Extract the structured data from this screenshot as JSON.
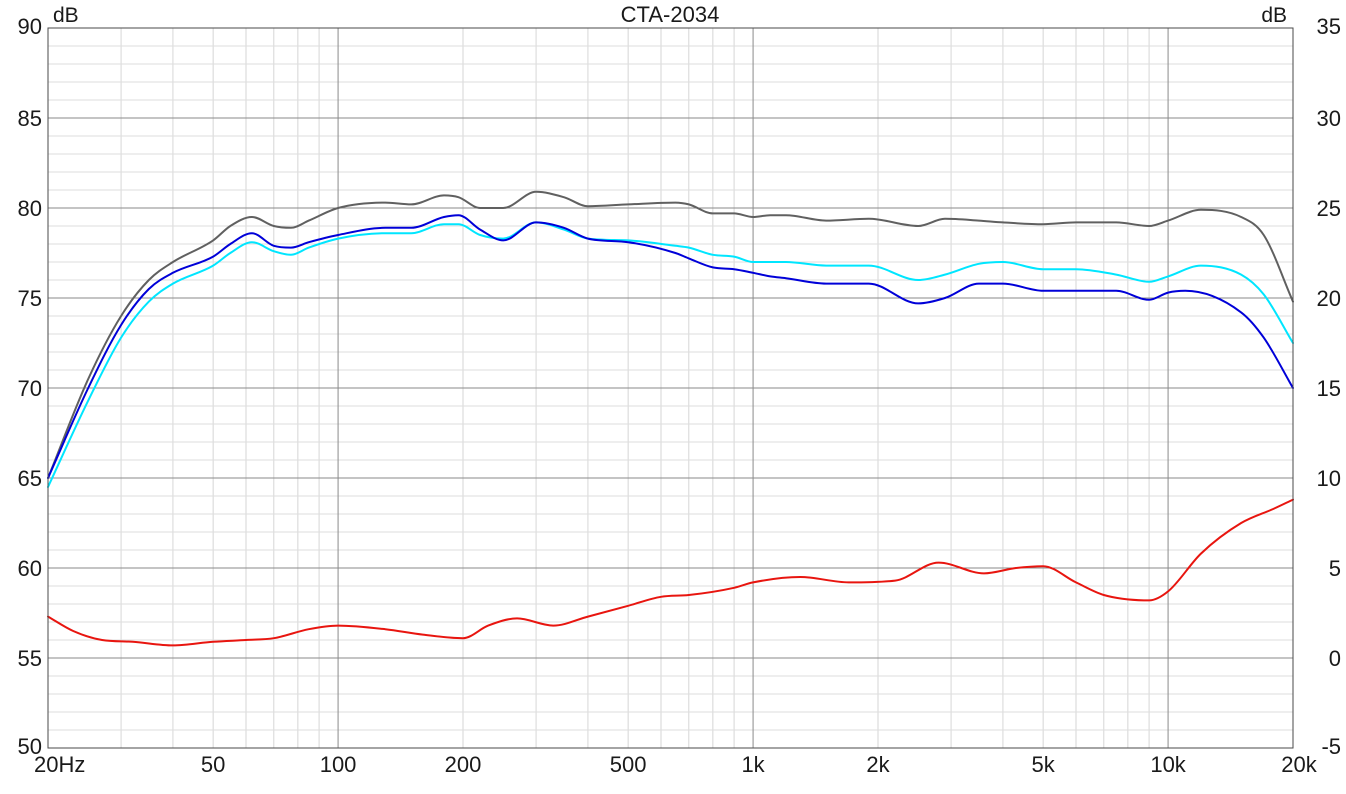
{
  "chart_data": {
    "type": "line",
    "title": "CTA-2034",
    "y_left_unit": "dB",
    "y_right_unit": "dB",
    "x_scale": "log",
    "xlim": [
      20,
      20000
    ],
    "ylim_left": [
      50,
      90
    ],
    "ylim_right": [
      -5,
      35
    ],
    "grid": true,
    "x_ticks": [
      {
        "value": 20,
        "label": "20Hz"
      },
      {
        "value": 50,
        "label": "50"
      },
      {
        "value": 100,
        "label": "100"
      },
      {
        "value": 200,
        "label": "200"
      },
      {
        "value": 500,
        "label": "500"
      },
      {
        "value": 1000,
        "label": "1k"
      },
      {
        "value": 2000,
        "label": "2k"
      },
      {
        "value": 5000,
        "label": "5k"
      },
      {
        "value": 10000,
        "label": "10k"
      },
      {
        "value": 20000,
        "label": "20k"
      }
    ],
    "y_left_ticks": [
      50,
      55,
      60,
      65,
      70,
      75,
      80,
      85,
      90
    ],
    "y_right_ticks": [
      -5,
      0,
      5,
      10,
      15,
      20,
      25,
      30,
      35
    ],
    "series": [
      {
        "color": "#606060",
        "axis": "left",
        "points": [
          [
            20,
            65.0
          ],
          [
            25,
            70.5
          ],
          [
            30,
            74.0
          ],
          [
            35,
            76.0
          ],
          [
            40,
            77.0
          ],
          [
            50,
            78.2
          ],
          [
            55,
            79.0
          ],
          [
            62,
            79.5
          ],
          [
            70,
            79.0
          ],
          [
            77,
            78.9
          ],
          [
            85,
            79.3
          ],
          [
            100,
            80.0
          ],
          [
            130,
            80.3
          ],
          [
            150,
            80.2
          ],
          [
            180,
            80.7
          ],
          [
            195,
            80.6
          ],
          [
            220,
            80.0
          ],
          [
            250,
            80.0
          ],
          [
            300,
            80.9
          ],
          [
            350,
            80.6
          ],
          [
            400,
            80.1
          ],
          [
            500,
            80.2
          ],
          [
            650,
            80.3
          ],
          [
            700,
            80.2
          ],
          [
            800,
            79.7
          ],
          [
            900,
            79.7
          ],
          [
            1000,
            79.5
          ],
          [
            1100,
            79.6
          ],
          [
            1200,
            79.6
          ],
          [
            1500,
            79.3
          ],
          [
            1900,
            79.4
          ],
          [
            2500,
            79.0
          ],
          [
            2900,
            79.4
          ],
          [
            3500,
            79.3
          ],
          [
            4000,
            79.2
          ],
          [
            5000,
            79.1
          ],
          [
            6000,
            79.2
          ],
          [
            7500,
            79.2
          ],
          [
            9000,
            79.0
          ],
          [
            10000,
            79.3
          ],
          [
            12000,
            79.9
          ],
          [
            15000,
            79.5
          ],
          [
            17000,
            78.5
          ],
          [
            20000,
            74.8
          ]
        ]
      },
      {
        "color": "#00e6ff",
        "axis": "left",
        "points": [
          [
            20,
            64.5
          ],
          [
            25,
            69.3
          ],
          [
            30,
            72.8
          ],
          [
            35,
            74.8
          ],
          [
            40,
            75.8
          ],
          [
            50,
            76.8
          ],
          [
            55,
            77.5
          ],
          [
            62,
            78.1
          ],
          [
            70,
            77.6
          ],
          [
            77,
            77.4
          ],
          [
            85,
            77.8
          ],
          [
            100,
            78.3
          ],
          [
            130,
            78.6
          ],
          [
            150,
            78.6
          ],
          [
            180,
            79.1
          ],
          [
            195,
            79.1
          ],
          [
            220,
            78.5
          ],
          [
            250,
            78.3
          ],
          [
            300,
            79.2
          ],
          [
            350,
            78.8
          ],
          [
            400,
            78.3
          ],
          [
            500,
            78.2
          ],
          [
            650,
            77.9
          ],
          [
            700,
            77.8
          ],
          [
            800,
            77.4
          ],
          [
            900,
            77.3
          ],
          [
            1000,
            77.0
          ],
          [
            1100,
            77.0
          ],
          [
            1200,
            77.0
          ],
          [
            1500,
            76.8
          ],
          [
            1900,
            76.8
          ],
          [
            2500,
            76.0
          ],
          [
            2900,
            76.3
          ],
          [
            3500,
            76.9
          ],
          [
            4000,
            77.0
          ],
          [
            5000,
            76.6
          ],
          [
            6000,
            76.6
          ],
          [
            7500,
            76.3
          ],
          [
            9000,
            75.9
          ],
          [
            10000,
            76.2
          ],
          [
            12000,
            76.8
          ],
          [
            15000,
            76.3
          ],
          [
            17000,
            75.2
          ],
          [
            20000,
            72.5
          ]
        ]
      },
      {
        "color": "#0000d8",
        "axis": "left",
        "points": [
          [
            20,
            65.0
          ],
          [
            25,
            70.0
          ],
          [
            30,
            73.5
          ],
          [
            35,
            75.5
          ],
          [
            40,
            76.4
          ],
          [
            50,
            77.3
          ],
          [
            55,
            78.0
          ],
          [
            62,
            78.6
          ],
          [
            70,
            77.9
          ],
          [
            77,
            77.8
          ],
          [
            85,
            78.1
          ],
          [
            100,
            78.5
          ],
          [
            130,
            78.9
          ],
          [
            150,
            78.9
          ],
          [
            180,
            79.5
          ],
          [
            195,
            79.6
          ],
          [
            220,
            78.8
          ],
          [
            250,
            78.2
          ],
          [
            300,
            79.2
          ],
          [
            350,
            78.9
          ],
          [
            400,
            78.3
          ],
          [
            500,
            78.1
          ],
          [
            650,
            77.5
          ],
          [
            700,
            77.2
          ],
          [
            800,
            76.7
          ],
          [
            900,
            76.6
          ],
          [
            1000,
            76.4
          ],
          [
            1100,
            76.2
          ],
          [
            1200,
            76.1
          ],
          [
            1500,
            75.8
          ],
          [
            1900,
            75.8
          ],
          [
            2500,
            74.7
          ],
          [
            2900,
            75.0
          ],
          [
            3500,
            75.8
          ],
          [
            4000,
            75.8
          ],
          [
            5000,
            75.4
          ],
          [
            6000,
            75.4
          ],
          [
            7500,
            75.4
          ],
          [
            9000,
            74.9
          ],
          [
            10000,
            75.3
          ],
          [
            11000,
            75.4
          ],
          [
            15000,
            74.2
          ],
          [
            17000,
            72.8
          ],
          [
            20000,
            70.0
          ]
        ]
      },
      {
        "color": "#e8150f",
        "axis": "right",
        "points": [
          [
            20,
            2.3
          ],
          [
            23,
            1.5
          ],
          [
            27,
            1.0
          ],
          [
            32,
            0.9
          ],
          [
            40,
            0.7
          ],
          [
            50,
            0.9
          ],
          [
            60,
            1.0
          ],
          [
            70,
            1.1
          ],
          [
            85,
            1.6
          ],
          [
            100,
            1.8
          ],
          [
            130,
            1.6
          ],
          [
            160,
            1.3
          ],
          [
            200,
            1.1
          ],
          [
            230,
            1.8
          ],
          [
            270,
            2.2
          ],
          [
            330,
            1.8
          ],
          [
            400,
            2.3
          ],
          [
            500,
            2.9
          ],
          [
            600,
            3.4
          ],
          [
            700,
            3.5
          ],
          [
            900,
            3.9
          ],
          [
            1000,
            4.2
          ],
          [
            1300,
            4.5
          ],
          [
            1700,
            4.2
          ],
          [
            2200,
            4.3
          ],
          [
            2800,
            5.3
          ],
          [
            3600,
            4.7
          ],
          [
            4300,
            5.0
          ],
          [
            5000,
            5.1
          ],
          [
            6000,
            4.2
          ],
          [
            7000,
            3.5
          ],
          [
            9000,
            3.2
          ],
          [
            10000,
            3.7
          ],
          [
            12000,
            5.8
          ],
          [
            15000,
            7.5
          ],
          [
            18000,
            8.3
          ],
          [
            20000,
            8.8
          ]
        ]
      }
    ]
  }
}
